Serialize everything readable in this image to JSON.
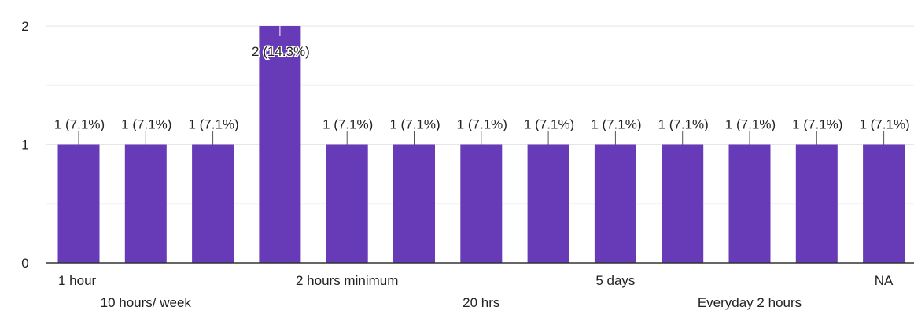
{
  "chart_data": {
    "type": "bar",
    "categories": [
      "1 hour",
      "10 hours/ week",
      "",
      "",
      "2 hours minimum",
      "",
      "20 hrs",
      "",
      "5 days",
      "",
      "Everyday 2 hours",
      "",
      "NA"
    ],
    "values": [
      1,
      1,
      1,
      2,
      1,
      1,
      1,
      1,
      1,
      1,
      1,
      1,
      1
    ],
    "data_labels": [
      "1 (7.1%)",
      "1 (7.1%)",
      "1 (7.1%)",
      "2 (14.3%)",
      "1 (7.1%)",
      "1 (7.1%)",
      "1 (7.1%)",
      "1 (7.1%)",
      "1 (7.1%)",
      "1 (7.1%)",
      "1 (7.1%)",
      "1 (7.1%)",
      "1 (7.1%)"
    ],
    "yticks": [
      0,
      1,
      2
    ],
    "ylim": [
      0,
      2
    ],
    "grid": true,
    "bar_color": "#673ab7",
    "title": "",
    "xlabel": "",
    "ylabel": ""
  }
}
